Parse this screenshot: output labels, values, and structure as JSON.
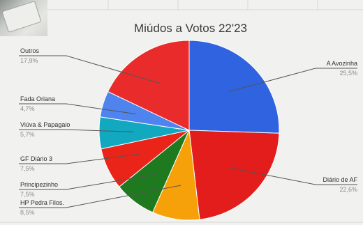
{
  "chart_data": {
    "type": "pie",
    "title": "Miúdos a Votos 22'23",
    "slices": [
      {
        "name": "A Avozinha",
        "value_label": "25,5%",
        "value": 25.5,
        "color": "#2f63e0"
      },
      {
        "name": "Diário de AF",
        "value_label": "22,6%",
        "value": 22.6,
        "color": "#e31c1c"
      },
      {
        "name": "HP Pedra Filos.",
        "value_label": "8,5%",
        "value": 8.5,
        "color": "#f6a10a"
      },
      {
        "name": "Principezinho",
        "value_label": "7,5%",
        "value": 7.5,
        "color": "#1f7a1f"
      },
      {
        "name": "GF Diário 3",
        "value_label": "7,5%",
        "value": 7.5,
        "color": "#ea2418"
      },
      {
        "name": "Viúva & Papagaio",
        "value_label": "5,7%",
        "value": 5.7,
        "color": "#11a8c0"
      },
      {
        "name": "Fada Oriana",
        "value_label": "4,7%",
        "value": 4.7,
        "color": "#4f83ee"
      },
      {
        "name": "Outros",
        "value_label": "17,9%",
        "value": 17.9,
        "color": "#ea2b2b"
      }
    ],
    "legend": "none",
    "grid": false
  }
}
